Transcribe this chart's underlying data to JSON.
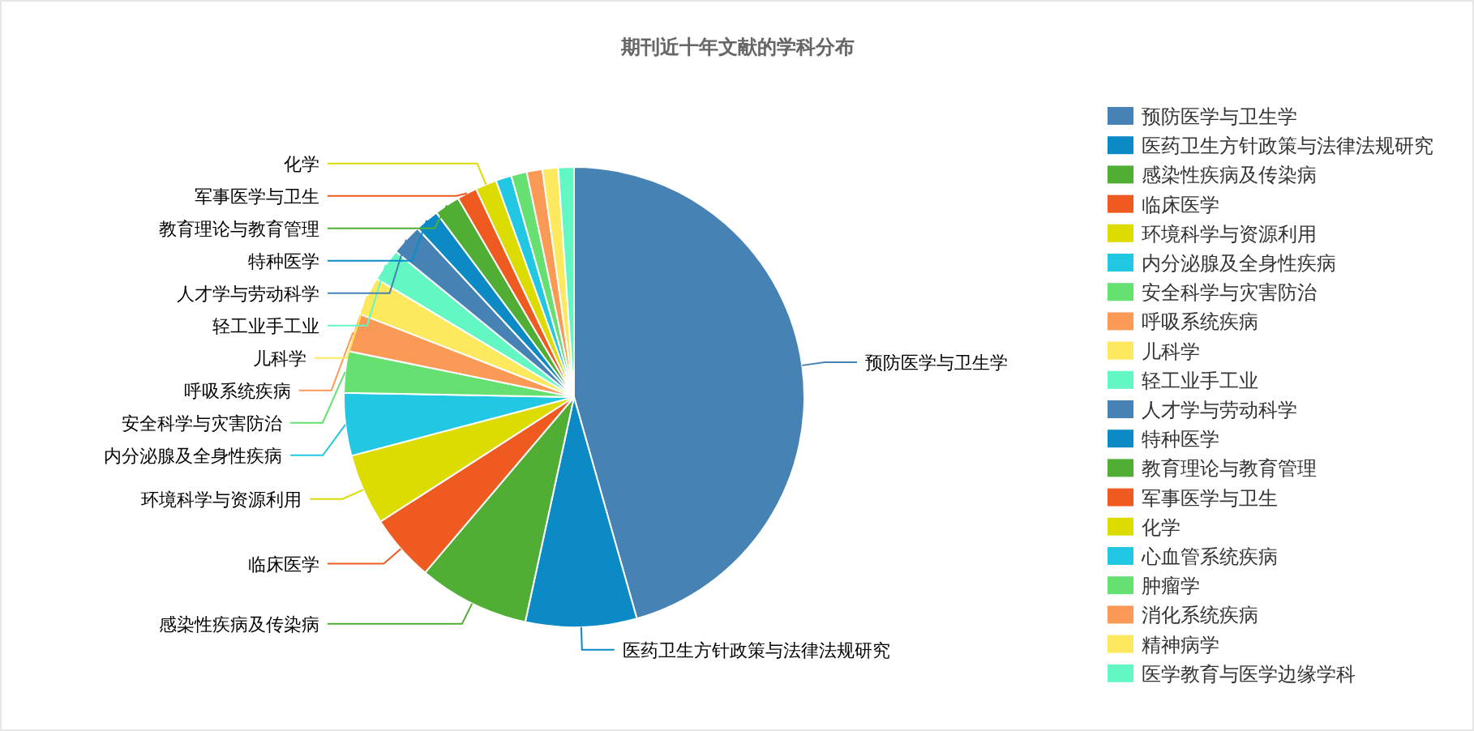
{
  "chart_data": {
    "type": "pie",
    "title": "期刊近十年文献的学科分布",
    "categories": [
      "预防医学与卫生学",
      "医药卫生方针政策与法律法规研究",
      "感染性疾病及传染病",
      "临床医学",
      "环境科学与资源利用",
      "内分泌腺及全身性疾病",
      "安全科学与灾害防治",
      "呼吸系统疾病",
      "儿科学",
      "轻工业手工业",
      "人才学与劳动科学",
      "特种医学",
      "教育理论与教育管理",
      "军事医学与卫生",
      "化学",
      "心血管系统疾病",
      "肿瘤学",
      "消化系统疾病",
      "精神病学",
      "医学教育与医学边缘学科"
    ],
    "values": [
      45.6,
      7.8,
      7.8,
      4.7,
      5.0,
      4.4,
      2.9,
      2.7,
      2.7,
      2.3,
      2.2,
      1.7,
      1.8,
      1.4,
      1.5,
      1.1,
      1.1,
      1.1,
      1.1,
      1.1
    ],
    "colors": [
      "#4682b4",
      "#0b8ac6",
      "#4fae33",
      "#ee5a1f",
      "#dcdc00",
      "#22c7e3",
      "#66e070",
      "#fb9a56",
      "#fde95e",
      "#63f7c4",
      "#4682b4",
      "#0b8ac6",
      "#4fae33",
      "#ee5a1f",
      "#dcdc00",
      "#22c7e3",
      "#66e070",
      "#fb9a56",
      "#fde95e",
      "#63f7c4"
    ],
    "legend": "right"
  }
}
